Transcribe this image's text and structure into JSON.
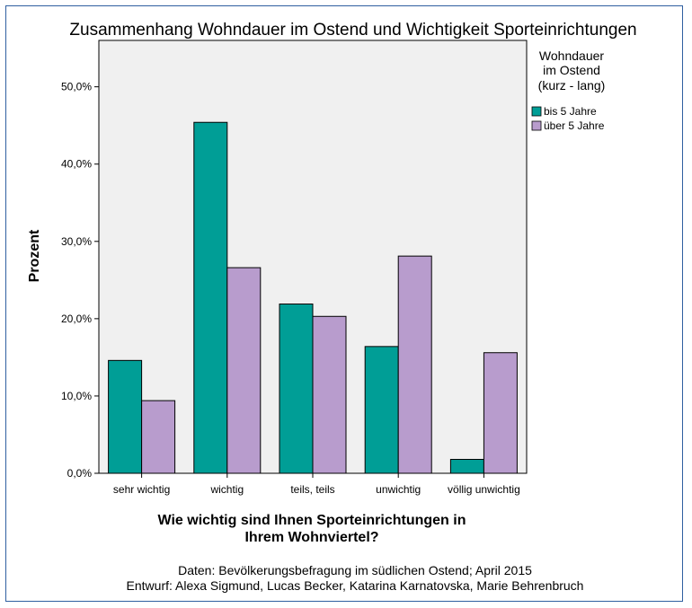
{
  "chart_data": {
    "type": "bar",
    "title": "Zusammenhang Wohndauer im Ostend und Wichtigkeit Sporteinrichtungen",
    "xlabel_lines": [
      "Wie wichtig sind Ihnen Sporteinrichtungen in",
      "Ihrem Wohnviertel?"
    ],
    "ylabel": "Prozent",
    "categories": [
      "sehr wichtig",
      "wichtig",
      "teils, teils",
      "unwichtig",
      "völlig unwichtig"
    ],
    "ylim": [
      0,
      56
    ],
    "yticks": [
      0,
      10,
      20,
      30,
      40,
      50
    ],
    "ytick_labels": [
      "0,0%",
      "10,0%",
      "20,0%",
      "30,0%",
      "40,0%",
      "50,0%"
    ],
    "legend": {
      "title_lines": [
        "Wohndauer",
        "im Ostend",
        "(kurz - lang)"
      ],
      "placement": "right"
    },
    "grid": false,
    "series": [
      {
        "name": "bis 5 Jahre",
        "color": "#009e96",
        "values": [
          14.6,
          45.4,
          21.9,
          16.4,
          1.8
        ]
      },
      {
        "name": "über 5 Jahre",
        "color": "#b89ccd",
        "values": [
          9.4,
          26.6,
          20.3,
          28.1,
          15.6
        ]
      }
    ],
    "plot_background": "#f0f0f0"
  },
  "credits": [
    "Daten: Bevölkerungsbefragung im südlichen Ostend; April 2015",
    "Entwurf: Alexa Sigmund, Lucas Becker, Katarina Karnatovska, Marie Behrenbruch"
  ]
}
